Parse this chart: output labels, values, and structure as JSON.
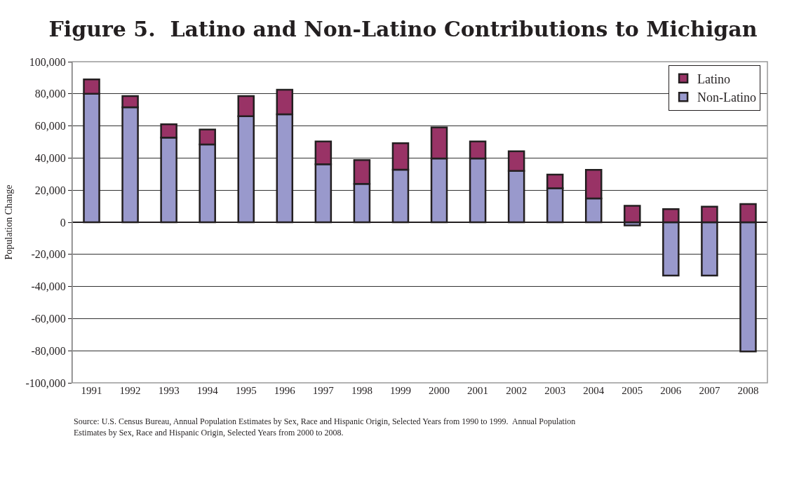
{
  "chart_data": {
    "type": "bar",
    "title": "Figure 5.  Latino and Non-Latino Contributions to Michigan",
    "ylabel": "Population Change",
    "categories": [
      "1991",
      "1992",
      "1993",
      "1994",
      "1995",
      "1996",
      "1997",
      "1998",
      "1999",
      "2000",
      "2001",
      "2002",
      "2003",
      "2004",
      "2005",
      "2006",
      "2007",
      "2008"
    ],
    "series": [
      {
        "name": "Non-Latino",
        "color": "#9999cc",
        "values": [
          80000,
          71600,
          52700,
          48500,
          66100,
          67300,
          36100,
          23900,
          32800,
          39700,
          39700,
          32000,
          21200,
          14800,
          -2000,
          -33200,
          -33200,
          -80500
        ]
      },
      {
        "name": "Latino",
        "color": "#993366",
        "values": [
          9000,
          7000,
          8300,
          9300,
          12500,
          15200,
          14200,
          14900,
          16400,
          19400,
          10600,
          12200,
          8500,
          17800,
          10300,
          8200,
          9700,
          11400
        ]
      }
    ],
    "stacked": true,
    "ylim": [
      -100000,
      100000
    ],
    "yticks": [
      {
        "value": -100000,
        "label": "-100,000"
      },
      {
        "value": -80000,
        "label": "-80,000"
      },
      {
        "value": -60000,
        "label": "-60,000"
      },
      {
        "value": -40000,
        "label": "-40,000"
      },
      {
        "value": -20000,
        "label": "-20,000"
      },
      0,
      {
        "value": 20000,
        "label": "20,000"
      },
      {
        "value": 40000,
        "label": "40,000"
      },
      {
        "value": 60000,
        "label": "60,000"
      },
      {
        "value": 80000,
        "label": "80,000"
      },
      {
        "value": 100000,
        "label": "100,000"
      }
    ],
    "grid": "y",
    "legend": "top right",
    "annotations": [
      "Source: U.S. Census Bureau, Annual Population Estimates by Sex, Race and Hispanic Origin, Selected Years from 1990 to 1999.  Annual Population Estimates by Sex, Race and Hispanic Origin, Selected Years from 2000 to 2008."
    ]
  }
}
